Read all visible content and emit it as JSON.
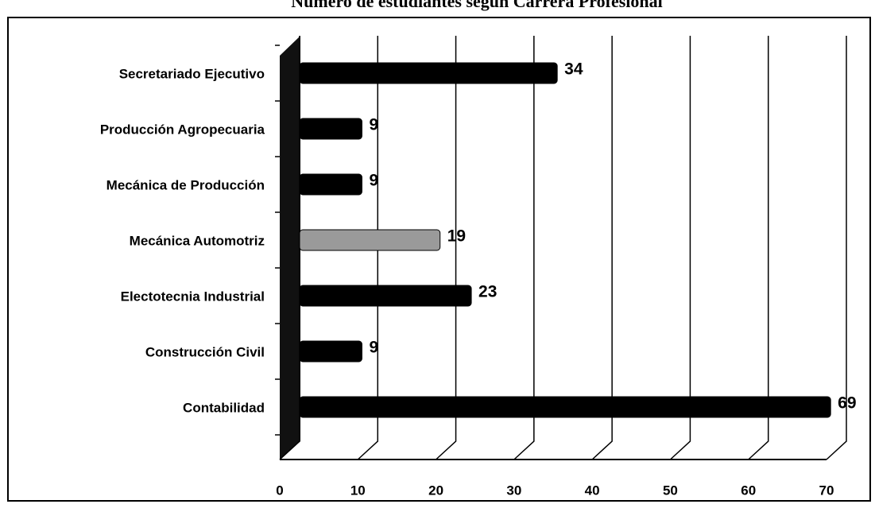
{
  "chart_data": {
    "type": "bar",
    "orientation": "horizontal",
    "title": "Número de estudiantes según Carrera Profesional",
    "categories": [
      "Contabilidad",
      "Construcción Civil",
      "Electotecnia Industrial",
      "Mecánica Automotriz",
      "Mecánica de Producción",
      "Producción Agropecuaria",
      "Secretariado Ejecutivo"
    ],
    "values": [
      69,
      9,
      23,
      19,
      9,
      9,
      34
    ],
    "colors": [
      "#000000",
      "#000000",
      "#000000",
      "#9a9a9a",
      "#000000",
      "#000000",
      "#000000"
    ],
    "xlim": [
      0,
      70
    ],
    "xticks": [
      0,
      10,
      20,
      30,
      40,
      50,
      60,
      70
    ],
    "grid": true
  }
}
